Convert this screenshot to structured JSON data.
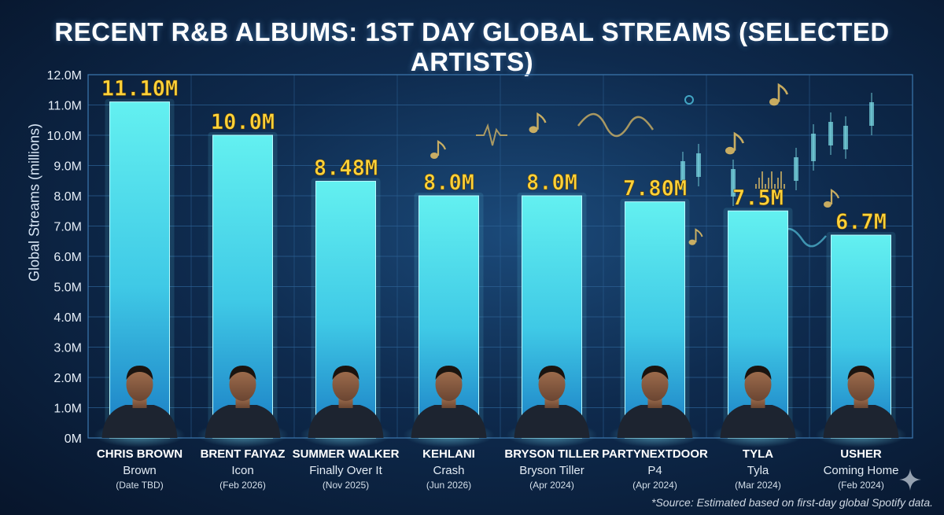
{
  "title": "RECENT R&B ALBUMS: 1ST DAY GLOBAL STREAMS (SELECTED ARTISTS)",
  "footnote": "*Source: Estimated based on first-day global Spotify data.",
  "colors": {
    "bar_fill_top": "#5ff2f2",
    "bar_fill_bottom": "#1c7fc4",
    "value_label": "#ffd23a",
    "grid": "#2f6aa0"
  },
  "chart_data": {
    "type": "bar",
    "ylabel": "Global Streams (millions)",
    "ylim": [
      0,
      12
    ],
    "yticks": [
      "0M",
      "1.0M",
      "2.0M",
      "3.0M",
      "4.0M",
      "5.0M",
      "6.0M",
      "7.0M",
      "8.0M",
      "9.0M",
      "10.0M",
      "11.0M",
      "12.0M"
    ],
    "grid": true,
    "categories": [
      "CHRIS BROWN",
      "BRENT FAIYAZ",
      "SUMMER WALKER",
      "KEHLANI",
      "BRYSON TILLER",
      "PARTYNEXTDOOR",
      "TYLA",
      "USHER"
    ],
    "albums": [
      "Brown",
      "Icon",
      "Finally Over It",
      "Crash",
      "Bryson Tiller",
      "P4",
      "Tyla",
      "Coming Home"
    ],
    "dates": [
      "(Date TBD)",
      "(Feb 2026)",
      "(Nov 2025)",
      "(Jun 2026)",
      "(Apr 2024)",
      "(Apr 2024)",
      "(Mar 2024)",
      "(Feb 2024)"
    ],
    "values": [
      11.1,
      10.0,
      8.48,
      8.0,
      8.0,
      7.8,
      7.5,
      6.7
    ],
    "value_labels": [
      "11.10M",
      "10.0M",
      "8.48M",
      "8.0M",
      "8.0M",
      "7.80M",
      "7.5M",
      "6.7M"
    ]
  }
}
